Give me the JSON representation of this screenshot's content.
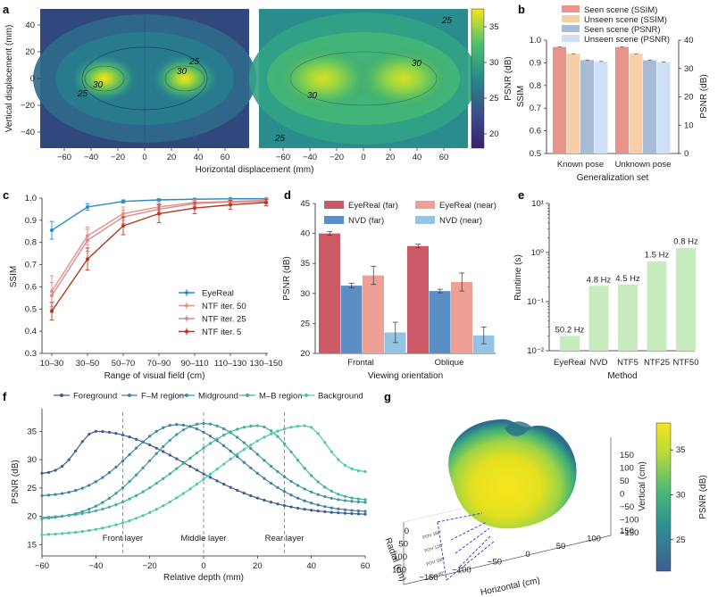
{
  "panel_labels": [
    "a",
    "b",
    "c",
    "d",
    "e",
    "f",
    "g"
  ],
  "chart_data": [
    {
      "id": "a",
      "type": "heatmap",
      "title": "",
      "xlabel": "Horizontal displacement (mm)",
      "ylabel": "Vertical displacement (mm)",
      "xticks": [
        "−60",
        "−40",
        "−20",
        "0",
        "20",
        "40",
        "60"
      ],
      "xtick_values": [
        -60,
        -40,
        -20,
        0,
        20,
        40,
        60
      ],
      "yticks": [
        "40",
        "20",
        "0",
        "−20",
        "−40"
      ],
      "ytick_values": [
        40,
        20,
        0,
        -20,
        -40
      ],
      "xlim": [
        -78,
        78
      ],
      "ylim": [
        -52,
        52
      ],
      "colorbar_label": "PSNR (dB)",
      "colorbar_ticks": [
        "35",
        "30",
        "25",
        "20"
      ],
      "colorbar_tick_values": [
        35,
        30,
        25,
        20
      ],
      "colorbar_range": [
        18,
        37.5
      ],
      "maps": [
        {
          "name": "left",
          "peaks": [
            {
              "x": -30,
              "y": 0,
              "psnr": 37
            },
            {
              "x": 30,
              "y": 0,
              "psnr": 37
            }
          ],
          "contour_labels": [
            "30",
            "30",
            "25",
            "25"
          ]
        },
        {
          "name": "right",
          "peaks": [
            {
              "x": -30,
              "y": 0,
              "psnr": 33
            },
            {
              "x": 30,
              "y": 0,
              "psnr": 33
            }
          ],
          "contour_labels": [
            "30",
            "30",
            "25",
            "25"
          ]
        }
      ]
    },
    {
      "id": "b",
      "type": "bar",
      "xlabel": "Generalization set",
      "ylabel": "SSIM",
      "ylabel_right": "PSNR (dB)",
      "categories": [
        "Known pose",
        "Unknown pose"
      ],
      "ylim": [
        0.5,
        1.0
      ],
      "ylim_right": [
        0,
        40
      ],
      "yticks": [
        "1.0",
        "0.9",
        "0.8",
        "0.7",
        "0.6",
        "0.5"
      ],
      "yticks_right": [
        "40",
        "30",
        "20",
        "10",
        "0"
      ],
      "series": [
        {
          "name": "Seen scene (SSIM)",
          "axis": "left",
          "color": "#e8948a",
          "values": [
            0.97,
            0.97
          ]
        },
        {
          "name": "Unseen scene (SSIM)",
          "axis": "left",
          "color": "#f6cfa8",
          "values": [
            0.94,
            0.94
          ]
        },
        {
          "name": "Seen scene (PSNR)",
          "axis": "right",
          "color": "#a9bcd6",
          "values": [
            33.0,
            32.9
          ]
        },
        {
          "name": "Unseen scene (PSNR)",
          "axis": "right",
          "color": "#cfe0f6",
          "values": [
            32.5,
            32.3
          ]
        }
      ]
    },
    {
      "id": "c",
      "type": "line",
      "xlabel": "Range of visual field (cm)",
      "ylabel": "SSIM",
      "categories": [
        "10–30",
        "30–50",
        "50–70",
        "70–90",
        "90–110",
        "110–130",
        "130–150"
      ],
      "ylim": [
        0.3,
        1.0
      ],
      "yticks": [
        "1.0",
        "0.9",
        "0.8",
        "0.7",
        "0.6",
        "0.5",
        "0.4",
        "0.3"
      ],
      "series": [
        {
          "name": "EyeReal",
          "color": "#2a8bc4",
          "values": [
            0.855,
            0.96,
            0.985,
            0.992,
            0.995,
            0.997,
            0.997
          ],
          "err": [
            0.04,
            0.015,
            0.007,
            0.004,
            0.003,
            0.002,
            0.002
          ]
        },
        {
          "name": "NTF iter. 50",
          "color": "#e9907f",
          "values": [
            0.58,
            0.83,
            0.93,
            0.96,
            0.98,
            0.985,
            0.99
          ],
          "err": [
            0.07,
            0.04,
            0.03,
            0.02,
            0.015,
            0.01,
            0.01
          ]
        },
        {
          "name": "NTF iter. 25",
          "color": "#d98a99",
          "values": [
            0.56,
            0.81,
            0.915,
            0.95,
            0.975,
            0.982,
            0.985
          ],
          "err": [
            0.06,
            0.05,
            0.03,
            0.025,
            0.015,
            0.012,
            0.01
          ]
        },
        {
          "name": "NTF iter. 5",
          "color": "#b5381f",
          "values": [
            0.49,
            0.725,
            0.875,
            0.93,
            0.955,
            0.97,
            0.98
          ],
          "err": [
            0.04,
            0.05,
            0.04,
            0.04,
            0.025,
            0.02,
            0.015
          ]
        }
      ]
    },
    {
      "id": "d",
      "type": "bar",
      "xlabel": "Viewing orientation",
      "ylabel": "PSNR (dB)",
      "categories": [
        "Frontal",
        "Oblique"
      ],
      "ylim": [
        20,
        45
      ],
      "yticks": [
        "45",
        "40",
        "35",
        "30",
        "25",
        "20"
      ],
      "series": [
        {
          "name": "EyeReal (far)",
          "color": "#cc5a66",
          "values": [
            40.0,
            37.9
          ],
          "err": [
            0.3,
            0.3
          ]
        },
        {
          "name": "NVD (far)",
          "color": "#5b8ec4",
          "values": [
            31.3,
            30.4
          ],
          "err": [
            0.4,
            0.3
          ]
        },
        {
          "name": "EyeReal (near)",
          "color": "#eda093",
          "values": [
            33.0,
            31.9
          ],
          "err": [
            1.5,
            1.5
          ]
        },
        {
          "name": "NVD (near)",
          "color": "#95c3e3",
          "values": [
            23.5,
            23.0
          ],
          "err": [
            1.7,
            1.4
          ]
        }
      ]
    },
    {
      "id": "e",
      "type": "bar",
      "xlabel": "Method",
      "ylabel": "Runtime (s)",
      "yscale": "log",
      "ylim": [
        0.01,
        10
      ],
      "yticks": [
        "10¹",
        "10⁰",
        "10⁻¹",
        "10⁻²"
      ],
      "categories": [
        "EyeReal",
        "NVD",
        "NTF5",
        "NTF25",
        "NTF50"
      ],
      "values": [
        0.02,
        0.21,
        0.222,
        0.667,
        1.25
      ],
      "data_labels": [
        "50.2 Hz",
        "4.8 Hz",
        "4.5 Hz",
        "1.5 Hz",
        "0.8 Hz"
      ],
      "color": "#c8ecc0"
    },
    {
      "id": "f",
      "type": "line",
      "xlabel": "Relative depth (mm)",
      "ylabel": "PSNR (dB)",
      "xlim": [
        -60,
        60
      ],
      "ylim": [
        13,
        39
      ],
      "xticks": [
        "−60",
        "−40",
        "−20",
        "0",
        "20",
        "40",
        "60"
      ],
      "xtick_values": [
        -60,
        -40,
        -20,
        0,
        20,
        40,
        60
      ],
      "yticks": [
        "35",
        "30",
        "25",
        "20",
        "15"
      ],
      "ytick_values": [
        35,
        30,
        25,
        20,
        15
      ],
      "layers": [
        {
          "name": "Front layer",
          "x": -30
        },
        {
          "name": "Middle layer",
          "x": 0
        },
        {
          "name": "Rear layer",
          "x": 30
        }
      ],
      "series": [
        {
          "name": "Foreground",
          "color": "#3c5a94",
          "peak_x": -40,
          "peak": 35.0,
          "left_end": 27.5,
          "right_end": 20.2
        },
        {
          "name": "F–M region",
          "color": "#3f7fa3",
          "peak_x": -10,
          "peak": 36.2,
          "left_end": 23.5,
          "right_end": 20.7
        },
        {
          "name": "Midground",
          "color": "#3a95a0",
          "peak_x": 0,
          "peak": 36.4,
          "left_end": 19.4,
          "right_end": 22.3
        },
        {
          "name": "M–B region",
          "color": "#3fb09a",
          "peak_x": 20,
          "peak": 36.0,
          "left_end": 19.6,
          "right_end": 22.8
        },
        {
          "name": "Background",
          "color": "#4cc8a8",
          "peak_x": 38,
          "peak": 36.0,
          "left_end": 16.5,
          "right_end": 27.8
        }
      ]
    },
    {
      "id": "g",
      "type": "scatter",
      "title": "",
      "axes": [
        "Horizontal (cm)",
        "Vertical (cm)",
        "Radial (cm)"
      ],
      "horizontal_ticks": [
        "−150",
        "−100",
        "−50",
        "0",
        "50",
        "100",
        "150"
      ],
      "vertical_ticks": [
        "150",
        "100",
        "50",
        "0",
        "−50",
        "−100",
        "−150"
      ],
      "radial_ticks": [
        "0",
        "50",
        "100",
        "150"
      ],
      "fov_labels": [
        "FOV 160°",
        "FOV 120°",
        "FOV 100°",
        "FOV 90°"
      ],
      "colorbar_label": "PSNR (dB)",
      "colorbar_ticks": [
        "35",
        "30",
        "25"
      ],
      "colorbar_tick_values": [
        35,
        30,
        25
      ],
      "colorbar_range": [
        21.5,
        38
      ]
    }
  ]
}
